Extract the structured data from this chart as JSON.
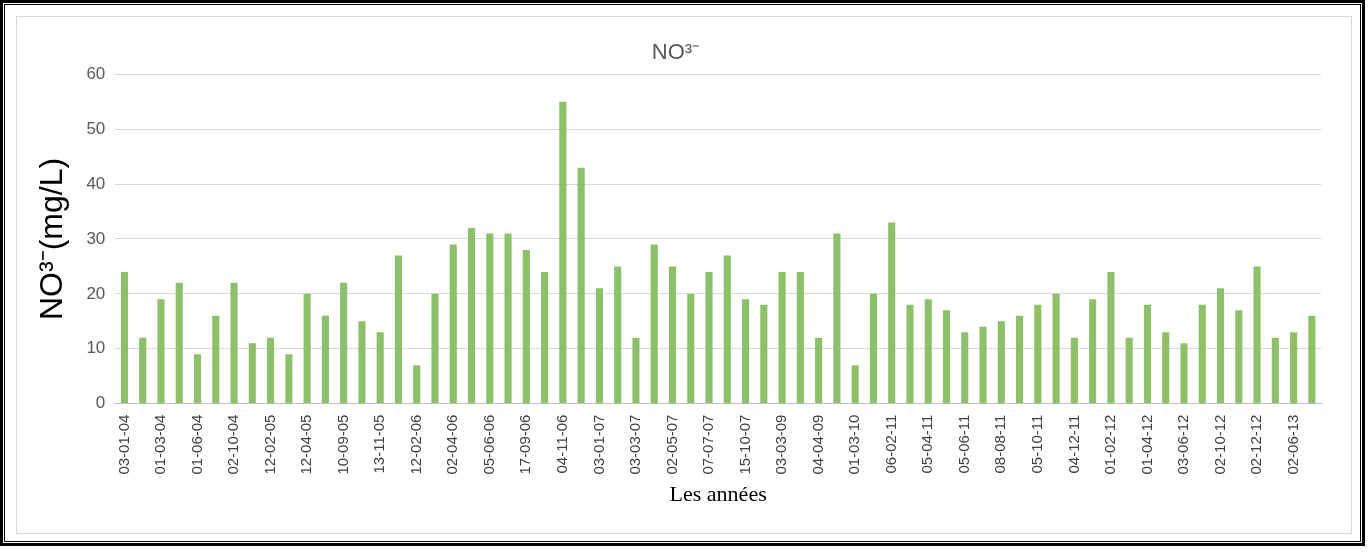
{
  "chart_data": {
    "type": "bar",
    "title": "NO³⁻",
    "xlabel": "Les années",
    "ylabel": "NO³⁻(mg/L)",
    "categories": [
      "03-01-04",
      null,
      "01-03-04",
      null,
      "01-06-04",
      null,
      "02-10-04",
      null,
      "12-02-05",
      null,
      "12-04-05",
      null,
      "10-09-05",
      null,
      "13-11-05",
      null,
      "12-02-06",
      null,
      "02-04-06",
      null,
      "05-06-06",
      null,
      "17-09-06",
      null,
      "04-11-06",
      null,
      "03-01-07",
      null,
      "03-03-07",
      null,
      "02-05-07",
      null,
      "07-07-07",
      null,
      "15-10-07",
      null,
      "03-03-09",
      null,
      "04-04-09",
      null,
      "01-03-10",
      null,
      "06-02-11",
      null,
      "05-04-11",
      null,
      "05-06-11",
      null,
      "08-08-11",
      null,
      "05-10-11",
      null,
      "04-12-11",
      null,
      "01-02-12",
      null,
      "01-04-12",
      null,
      "03-06-12",
      null,
      "02-10-12",
      null,
      "02-12-12",
      null,
      "02-06-13",
      null
    ],
    "values": [
      24,
      12,
      19,
      22,
      9,
      16,
      22,
      11,
      12,
      9,
      20,
      16,
      22,
      15,
      13,
      27,
      7,
      20,
      29,
      32,
      31,
      31,
      28,
      24,
      55,
      43,
      21,
      25,
      12,
      29,
      25,
      20,
      24,
      27,
      19,
      18,
      24,
      24,
      12,
      31,
      7,
      20,
      33,
      18,
      19,
      17,
      13,
      14,
      15,
      16,
      18,
      20,
      12,
      19,
      24,
      12,
      18,
      13,
      11,
      18,
      21,
      17,
      25,
      12,
      13,
      16
    ],
    "color": "#8cc16a",
    "ylim": [
      0,
      60
    ],
    "yticks": [
      0,
      10,
      20,
      30,
      40,
      50,
      60
    ],
    "grid": "y",
    "legend": false
  }
}
